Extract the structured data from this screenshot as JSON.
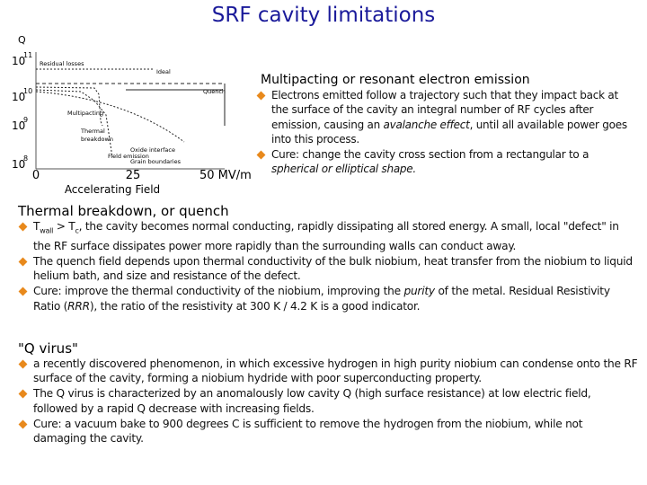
{
  "title": "SRF cavity limitations",
  "figure": {
    "y_label": "Q",
    "y_ticks": [
      {
        "base": "10",
        "exp": "11"
      },
      {
        "base": "10",
        "exp": "10"
      },
      {
        "base": "10",
        "exp": "9"
      },
      {
        "base": "10",
        "exp": "8"
      }
    ],
    "x_ticks": [
      "0",
      "25",
      "50 MV/m"
    ],
    "x_label": "Accelerating Field",
    "annotations": [
      "Residual losses",
      "Ideal",
      "Quench",
      "Multipacting",
      "Thermal",
      "breakdown",
      "Oxide interface",
      "Field emission",
      "Grain boundaries"
    ]
  },
  "sections": [
    {
      "heading": "Multipacting or resonant electron emission",
      "bullets": [
        [
          {
            "text": "Electrons emitted follow a trajectory such that they impact back at the surface of the cavity an integral number of RF cycles after emission, causing an "
          },
          {
            "text": "avalanche effect",
            "style": "italic"
          },
          {
            "text": ", until all available power goes into this process."
          }
        ],
        [
          {
            "text": "Cure: change the cavity cross section from a rectangular to a "
          },
          {
            "text": "spherical or elliptical shape.",
            "style": "italic"
          }
        ]
      ]
    },
    {
      "heading": "Thermal breakdown, or quench",
      "bullets": [
        [
          {
            "text": "T"
          },
          {
            "text": "wall",
            "style": "sub"
          },
          {
            "text": " > T"
          },
          {
            "text": "c",
            "style": "sub"
          },
          {
            "text": ", the cavity becomes normal conducting, rapidly dissipating all stored energy. A small, local \"defect\" in the RF surface dissipates power more rapidly than the surrounding walls can conduct away."
          }
        ],
        [
          {
            "text": "The quench field depends upon thermal conductivity of the bulk niobium, heat transfer from the niobium to liquid helium bath, and size and resistance of the defect."
          }
        ],
        [
          {
            "text": "Cure: improve the thermal conductivity of the niobium, improving the "
          },
          {
            "text": "purity",
            "style": "italic"
          },
          {
            "text": " of the metal. Residual Resistivity Ratio ("
          },
          {
            "text": "RRR",
            "style": "italic"
          },
          {
            "text": "), the ratio of the resistivity at 300 K / 4.2 K is a good indicator."
          }
        ]
      ]
    },
    {
      "heading": "\"Q virus\"",
      "bullets": [
        [
          {
            "text": "a recently discovered phenomenon, in which excessive hydrogen in high purity niobium can condense onto the RF surface of the cavity, forming a niobium hydride with poor superconducting property."
          }
        ],
        [
          {
            "text": "The Q virus is characterized by an anomalously low cavity Q (high surface resistance) at low electric field, followed by a rapid Q decrease with increasing fields."
          }
        ],
        [
          {
            "text": "Cure: a vacuum bake to 900 degrees C is sufficient to remove the hydrogen from the niobium, while not damaging the cavity."
          }
        ]
      ]
    }
  ]
}
